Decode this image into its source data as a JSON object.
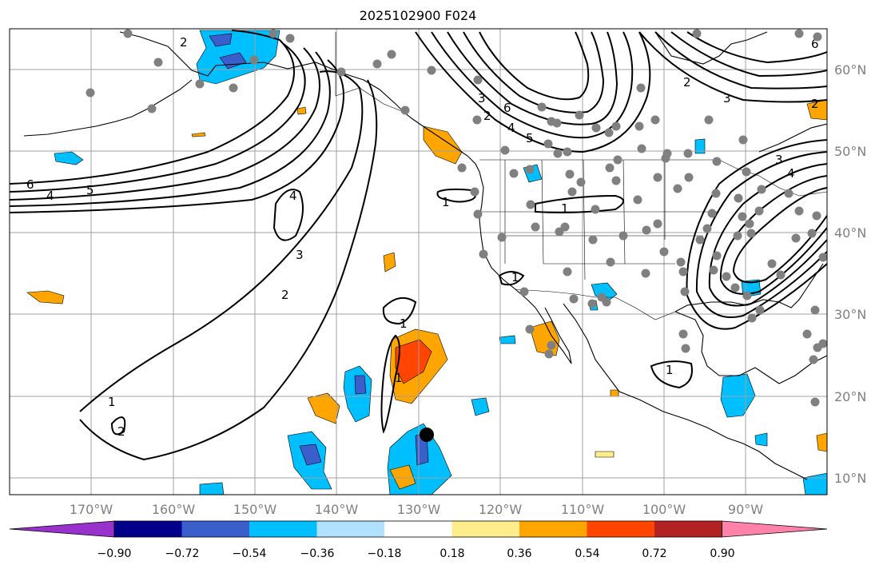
{
  "title": "2025102900 F024",
  "lon_ticks": [
    "170°W",
    "160°W",
    "150°W",
    "140°W",
    "130°W",
    "120°W",
    "110°W",
    "100°W",
    "90°W"
  ],
  "lat_ticks": [
    "60°N",
    "50°N",
    "40°N",
    "30°N",
    "20°N",
    "10°N"
  ],
  "colorbar": {
    "colors": [
      "#9932cc",
      "#00008b",
      "#3a5fcd",
      "#00bfff",
      "#b0e2ff",
      "#ffffff",
      "#ffec8b",
      "#ffa500",
      "#ff4500",
      "#b22222",
      "#ff82ab"
    ],
    "tick_labels": [
      "−0.90",
      "−0.72",
      "−0.54",
      "−0.36",
      "−0.18",
      "0.18",
      "0.36",
      "0.54",
      "0.72",
      "0.90"
    ]
  },
  "contour_labels": [
    "6",
    "4",
    "5",
    "2",
    "4",
    "3",
    "2",
    "1",
    "2",
    "1",
    "1",
    "1",
    "1",
    "2",
    "3",
    "4",
    "1",
    "2",
    "3",
    "3",
    "4",
    "5",
    "6",
    "6",
    "2",
    "1"
  ],
  "colors": {
    "land": "#ffffff",
    "grid": "#a0a0a0",
    "station": "#808080"
  }
}
